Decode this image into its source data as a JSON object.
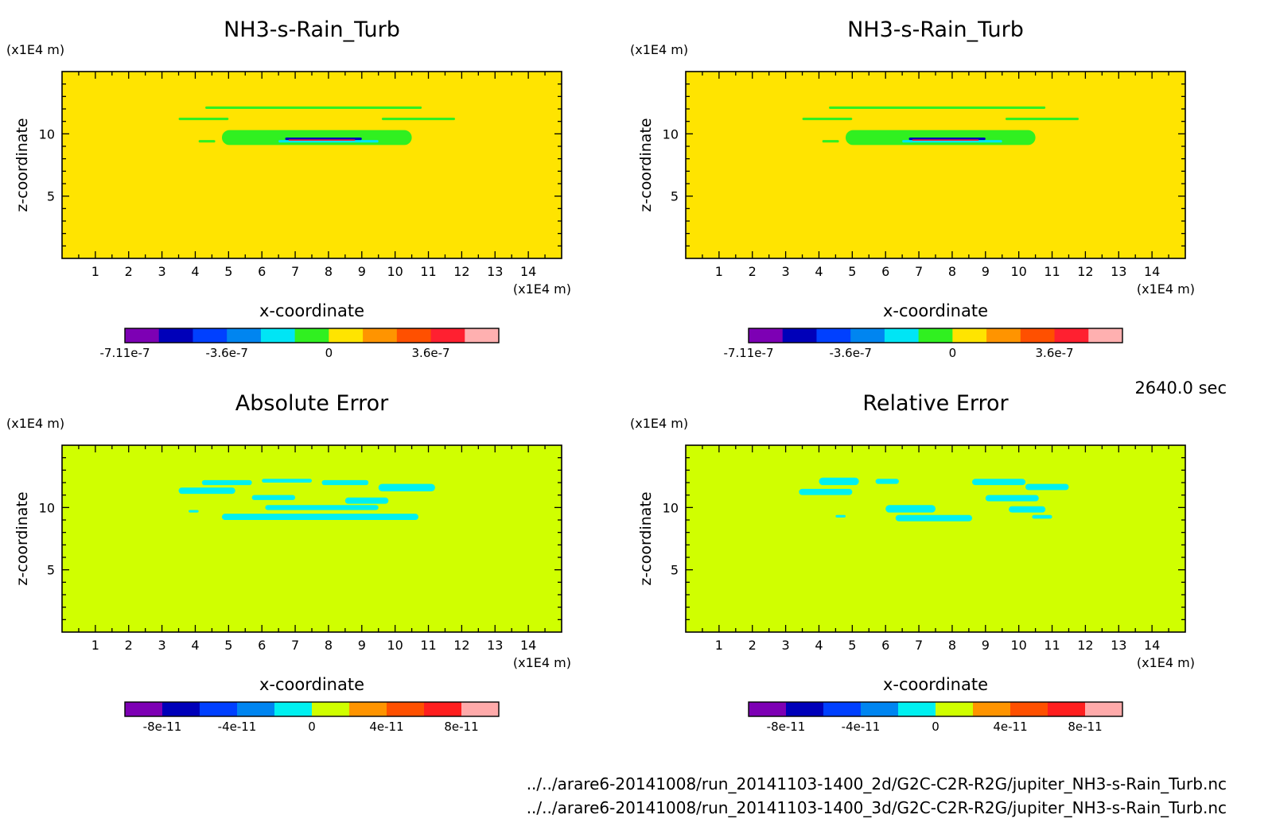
{
  "time_label": "2640.0 sec",
  "file_paths": [
    "../../arare6-20141008/run_20141103-1400_2d/G2C-C2R-R2G/jupiter_NH3-s-Rain_Turb.nc",
    "../../arare6-20141008/run_20141103-1400_3d/G2C-C2R-R2G/jupiter_NH3-s-Rain_Turb.nc"
  ],
  "colors": {
    "scale_a": [
      "#7d00b4",
      "#0000b9",
      "#0040ff",
      "#0085f0",
      "#00e5f5",
      "#30f020",
      "#ffe400",
      "#ff9400",
      "#ff5000",
      "#ff2030",
      "#ffb0b0"
    ],
    "scale_b": [
      "#7d00b4",
      "#0000b9",
      "#0040ff",
      "#0085f0",
      "#00f0f0",
      "#d0ff00",
      "#ff9400",
      "#ff5000",
      "#ff1e1e",
      "#ffaaaa"
    ]
  },
  "chart_data": [
    {
      "type": "heatmap",
      "title": "NH3-s-Rain_Turb",
      "xlabel": "x-coordinate",
      "ylabel": "z-coordinate",
      "x_unit": "(x1E4 m)",
      "y_unit": "(x1E4 m)",
      "xlim": [
        0,
        15
      ],
      "ylim": [
        0,
        15
      ],
      "x_ticks": [
        "1",
        "2",
        "3",
        "4",
        "5",
        "6",
        "7",
        "8",
        "9",
        "10",
        "11",
        "12",
        "13",
        "14"
      ],
      "y_ticks": [
        "5",
        "10"
      ],
      "background_level": 6,
      "features": [
        {
          "x": [
            4.3,
            10.8
          ],
          "z": [
            12.0,
            12.2
          ],
          "level": 5
        },
        {
          "x": [
            3.5,
            5.0
          ],
          "z": [
            11.1,
            11.3
          ],
          "level": 5
        },
        {
          "x": [
            9.6,
            11.8
          ],
          "z": [
            11.1,
            11.3
          ],
          "level": 5
        },
        {
          "x": [
            4.1,
            4.6
          ],
          "z": [
            9.3,
            9.5
          ],
          "level": 5
        },
        {
          "x": [
            4.8,
            10.5
          ],
          "z": [
            9.1,
            10.3
          ],
          "level": 5
        },
        {
          "x": [
            6.5,
            9.5
          ],
          "z": [
            9.3,
            9.5
          ],
          "level": 4
        },
        {
          "x": [
            6.7,
            9.0
          ],
          "z": [
            9.5,
            9.7
          ],
          "level": 1
        },
        {
          "x": [
            6.8,
            8.8
          ],
          "z": [
            9.45,
            9.55
          ],
          "level": 9
        }
      ],
      "colorbar": {
        "labels": [
          "-7.11e-7",
          "-3.6e-7",
          "0",
          "3.6e-7"
        ],
        "label_positions": [
          0,
          3,
          6,
          9
        ],
        "n_colors": 11
      }
    },
    {
      "type": "heatmap",
      "title": "NH3-s-Rain_Turb",
      "xlabel": "x-coordinate",
      "ylabel": "z-coordinate",
      "x_unit": "(x1E4 m)",
      "y_unit": "(x1E4 m)",
      "xlim": [
        0,
        15
      ],
      "ylim": [
        0,
        15
      ],
      "x_ticks": [
        "1",
        "2",
        "3",
        "4",
        "5",
        "6",
        "7",
        "8",
        "9",
        "10",
        "11",
        "12",
        "13",
        "14"
      ],
      "y_ticks": [
        "5",
        "10"
      ],
      "background_level": 6,
      "features": [
        {
          "x": [
            4.3,
            10.8
          ],
          "z": [
            12.0,
            12.2
          ],
          "level": 5
        },
        {
          "x": [
            3.5,
            5.0
          ],
          "z": [
            11.1,
            11.3
          ],
          "level": 5
        },
        {
          "x": [
            9.6,
            11.8
          ],
          "z": [
            11.1,
            11.3
          ],
          "level": 5
        },
        {
          "x": [
            4.1,
            4.6
          ],
          "z": [
            9.3,
            9.5
          ],
          "level": 5
        },
        {
          "x": [
            4.8,
            10.5
          ],
          "z": [
            9.1,
            10.3
          ],
          "level": 5
        },
        {
          "x": [
            6.5,
            9.5
          ],
          "z": [
            9.3,
            9.5
          ],
          "level": 4
        },
        {
          "x": [
            6.7,
            9.0
          ],
          "z": [
            9.5,
            9.7
          ],
          "level": 1
        },
        {
          "x": [
            6.8,
            8.8
          ],
          "z": [
            9.45,
            9.55
          ],
          "level": 9
        }
      ],
      "colorbar": {
        "labels": [
          "-7.11e-7",
          "-3.6e-7",
          "0",
          "3.6e-7"
        ],
        "label_positions": [
          0,
          3,
          6,
          9
        ],
        "n_colors": 11
      }
    },
    {
      "type": "heatmap",
      "title": "Absolute Error",
      "xlabel": "x-coordinate",
      "ylabel": "z-coordinate",
      "x_unit": "(x1E4 m)",
      "y_unit": "(x1E4 m)",
      "xlim": [
        0,
        15
      ],
      "ylim": [
        0,
        15
      ],
      "x_ticks": [
        "1",
        "2",
        "3",
        "4",
        "5",
        "6",
        "7",
        "8",
        "9",
        "10",
        "11",
        "12",
        "13",
        "14"
      ],
      "y_ticks": [
        "5",
        "10"
      ],
      "background_level": 5,
      "features": [
        {
          "x": [
            3.5,
            5.2
          ],
          "z": [
            11.1,
            11.6
          ],
          "level": 4
        },
        {
          "x": [
            4.2,
            5.7
          ],
          "z": [
            11.8,
            12.2
          ],
          "level": 4
        },
        {
          "x": [
            6.0,
            7.5
          ],
          "z": [
            12.0,
            12.3
          ],
          "level": 4
        },
        {
          "x": [
            7.8,
            9.2
          ],
          "z": [
            11.8,
            12.2
          ],
          "level": 4
        },
        {
          "x": [
            9.5,
            11.2
          ],
          "z": [
            11.3,
            11.9
          ],
          "level": 4
        },
        {
          "x": [
            5.7,
            7.0
          ],
          "z": [
            10.6,
            11.0
          ],
          "level": 4
        },
        {
          "x": [
            8.5,
            9.8
          ],
          "z": [
            10.3,
            10.8
          ],
          "level": 4
        },
        {
          "x": [
            6.1,
            9.5
          ],
          "z": [
            9.8,
            10.2
          ],
          "level": 4
        },
        {
          "x": [
            4.8,
            10.7
          ],
          "z": [
            9.0,
            9.5
          ],
          "level": 4
        },
        {
          "x": [
            3.8,
            4.1
          ],
          "z": [
            9.6,
            9.8
          ],
          "level": 4
        }
      ],
      "colorbar": {
        "labels": [
          "-8e-11",
          "-4e-11",
          "0",
          "4e-11",
          "8e-11"
        ],
        "label_positions": [
          1,
          3,
          5,
          7,
          9
        ],
        "n_colors": 10
      }
    },
    {
      "type": "heatmap",
      "title": "Relative Error",
      "xlabel": "x-coordinate",
      "ylabel": "z-coordinate",
      "x_unit": "(x1E4 m)",
      "y_unit": "(x1E4 m)",
      "xlim": [
        0,
        15
      ],
      "ylim": [
        0,
        15
      ],
      "x_ticks": [
        "1",
        "2",
        "3",
        "4",
        "5",
        "6",
        "7",
        "8",
        "9",
        "10",
        "11",
        "12",
        "13",
        "14"
      ],
      "y_ticks": [
        "5",
        "10"
      ],
      "background_level": 5,
      "features": [
        {
          "x": [
            3.4,
            5.0
          ],
          "z": [
            11.0,
            11.5
          ],
          "level": 4
        },
        {
          "x": [
            4.0,
            5.2
          ],
          "z": [
            11.8,
            12.4
          ],
          "level": 4
        },
        {
          "x": [
            5.7,
            6.4
          ],
          "z": [
            11.9,
            12.3
          ],
          "level": 4
        },
        {
          "x": [
            8.6,
            10.2
          ],
          "z": [
            11.8,
            12.3
          ],
          "level": 4
        },
        {
          "x": [
            10.2,
            11.5
          ],
          "z": [
            11.4,
            11.9
          ],
          "level": 4
        },
        {
          "x": [
            9.0,
            10.6
          ],
          "z": [
            10.5,
            11.0
          ],
          "level": 4
        },
        {
          "x": [
            6.0,
            7.5
          ],
          "z": [
            9.6,
            10.2
          ],
          "level": 4
        },
        {
          "x": [
            9.7,
            10.8
          ],
          "z": [
            9.6,
            10.1
          ],
          "level": 4
        },
        {
          "x": [
            6.3,
            8.6
          ],
          "z": [
            8.9,
            9.4
          ],
          "level": 4
        },
        {
          "x": [
            10.4,
            11.0
          ],
          "z": [
            9.1,
            9.4
          ],
          "level": 4
        },
        {
          "x": [
            4.5,
            4.8
          ],
          "z": [
            9.2,
            9.4
          ],
          "level": 4
        }
      ],
      "colorbar": {
        "labels": [
          "-8e-11",
          "-4e-11",
          "0",
          "4e-11",
          "8e-11"
        ],
        "label_positions": [
          1,
          3,
          5,
          7,
          9
        ],
        "n_colors": 10
      }
    }
  ]
}
